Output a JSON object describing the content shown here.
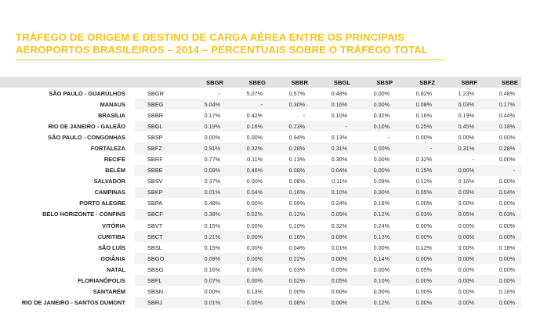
{
  "title": {
    "line1": "TRÁFEGO DE ORIGEM E DESTINO DE CARGA AÉREA ENTRE OS PRINCIPAIS",
    "line2": "AEROPORTOS BRASILEIROS – 2014 – PERCENTUAIS SOBRE O TRÁFEGO TOTAL"
  },
  "columns": [
    "SBGR",
    "SBEG",
    "SBBR",
    "SBGL",
    "SBSP",
    "SBFZ",
    "SBRF",
    "SBBE"
  ],
  "rows": [
    {
      "name": "SÃO PAULO - GUARULHOS",
      "code": "SBGR",
      "values": [
        "-",
        "5.07%",
        "0.57%",
        "0.48%",
        "0.00%",
        "0.82%",
        "1.23%",
        "0.48%"
      ]
    },
    {
      "name": "MANAUS",
      "code": "SBEG",
      "values": [
        "5.04%",
        "-",
        "0.30%",
        "0.16%",
        "0.00%",
        "0.08%",
        "0.03%",
        "0.17%"
      ]
    },
    {
      "name": "BRASÍLIA",
      "code": "SBBR",
      "values": [
        "0.17%",
        "0.42%",
        "-",
        "0.10%",
        "0.32%",
        "0.16%",
        "0.19%",
        "0.44%"
      ]
    },
    {
      "name": "RIO DE JANEIRO - GALEÃO",
      "code": "SBGL",
      "values": [
        "0.19%",
        "0.16%",
        "0.23%",
        "-",
        "0.10%",
        "0.25%",
        "0.45%",
        "0.18%"
      ]
    },
    {
      "name": "SÃO PAULO - CONGONHAS",
      "code": "SBSP",
      "values": [
        "0.00%",
        "0.00%",
        "0.94%",
        "0.13%",
        "-",
        "0.00%",
        "0.00%",
        "0.00%"
      ]
    },
    {
      "name": "FORTALEZA",
      "code": "SBFZ",
      "values": [
        "0.91%",
        "0.32%",
        "0.28%",
        "0.31%",
        "0.00%",
        "-",
        "0.31%",
        "0.28%"
      ]
    },
    {
      "name": "RECIFE",
      "code": "SBRF",
      "values": [
        "0.77%",
        "0.11%",
        "0.13%",
        "0.30%",
        "0.00%",
        "0.32%",
        "-",
        "0.00%"
      ]
    },
    {
      "name": "BELÉM",
      "code": "SBBE",
      "values": [
        "0.09%",
        "0.46%",
        "0.08%",
        "0.04%",
        "0.00%",
        "0.15%",
        "0.00%",
        "-"
      ]
    },
    {
      "name": "SALVADOR",
      "code": "SBSV",
      "values": [
        "0.37%",
        "0.00%",
        "0.08%",
        "0.11%",
        "0.09%",
        "0.12%",
        "0.16%",
        "0.00%"
      ]
    },
    {
      "name": "CAMPINAS",
      "code": "SBKP",
      "values": [
        "0.01%",
        "0.04%",
        "0.16%",
        "0.10%",
        "0.00%",
        "0.05%",
        "0.09%",
        "0.04%"
      ]
    },
    {
      "name": "PORTO ALEGRE",
      "code": "SBPA",
      "values": [
        "0.48%",
        "0.00%",
        "0.09%",
        "0.24%",
        "0.18%",
        "0.00%",
        "0.00%",
        "0.00%"
      ]
    },
    {
      "name": "BELO HORIZONTE - CONFINS",
      "code": "SBCF",
      "values": [
        "0.38%",
        "0.02%",
        "0.12%",
        "0.05%",
        "0.12%",
        "0.03%",
        "0.05%",
        "0.03%"
      ]
    },
    {
      "name": "VITÓRIA",
      "code": "SBVT",
      "values": [
        "0.15%",
        "0.00%",
        "0.10%",
        "0.32%",
        "0.24%",
        "0.00%",
        "0.00%",
        "0.00%"
      ]
    },
    {
      "name": "CURITIBA",
      "code": "SBCT",
      "values": [
        "0.21%",
        "0.00%",
        "0.16%",
        "0.09%",
        "0.13%",
        "0.00%",
        "0.00%",
        "0.00%"
      ]
    },
    {
      "name": "SÃO LUÍS",
      "code": "SBSL",
      "values": [
        "0.15%",
        "0.00%",
        "0.04%",
        "0.01%",
        "0.00%",
        "0.12%",
        "0.00%",
        "0.18%"
      ]
    },
    {
      "name": "GOIÂNIA",
      "code": "SBGO",
      "values": [
        "0.09%",
        "0.00%",
        "0.22%",
        "0.00%",
        "0.14%",
        "0.00%",
        "0.00%",
        "0.00%"
      ]
    },
    {
      "name": "NATAL",
      "code": "SBSG",
      "values": [
        "0.16%",
        "0.00%",
        "0.03%",
        "0.05%",
        "0.00%",
        "0.05%",
        "0.00%",
        "0.00%"
      ]
    },
    {
      "name": "FLORIANÓPOLIS",
      "code": "SBFL",
      "values": [
        "0.07%",
        "0.00%",
        "0.02%",
        "0.05%",
        "0.10%",
        "0.00%",
        "0.00%",
        "0.00%"
      ]
    },
    {
      "name": "SANTARÉM",
      "code": "SBSN",
      "values": [
        "0.00%",
        "0.13%",
        "0.00%",
        "0.00%",
        "0.00%",
        "0.00%",
        "0.00%",
        "0.16%"
      ]
    },
    {
      "name": "RIO DE JANEIRO - SANTOS DUMONT",
      "code": "SBRJ",
      "values": [
        "0.01%",
        "0.00%",
        "0.08%",
        "0.00%",
        "0.12%",
        "0.00%",
        "0.00%",
        "0.00%"
      ]
    }
  ]
}
